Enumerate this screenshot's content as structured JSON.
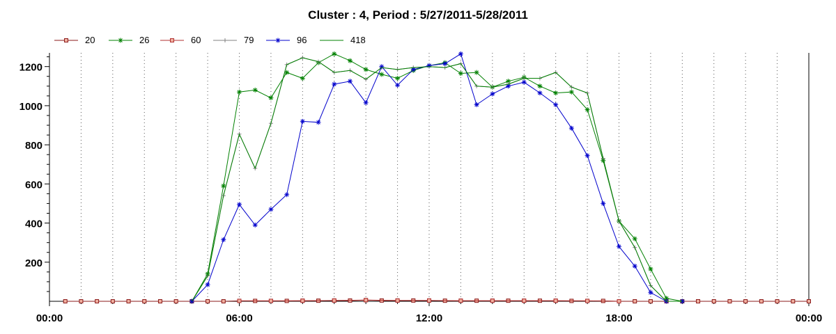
{
  "chart_data": {
    "type": "line",
    "title": "Cluster : 4, Period : 5/27/2011-5/28/2011",
    "xlabel": "",
    "ylabel": "",
    "xlim": [
      0,
      24
    ],
    "ylim": [
      0,
      1270
    ],
    "x_ticks": [
      {
        "value": 0,
        "label": "00:00"
      },
      {
        "value": 6,
        "label": "06:00"
      },
      {
        "value": 12,
        "label": "12:00"
      },
      {
        "value": 18,
        "label": "18:00"
      },
      {
        "value": 24,
        "label": "00:00"
      }
    ],
    "y_ticks": [
      200,
      400,
      600,
      800,
      1000,
      1200
    ],
    "grid": "vertical dotted every hour",
    "legend_position": "top-left",
    "series": [
      {
        "name": "20",
        "color": "#8b1a1a",
        "marker": "square",
        "x": [
          0.5,
          1,
          1.5,
          2,
          2.5,
          3,
          3.5,
          4,
          4.5,
          5,
          5.5,
          6,
          6.5,
          7,
          7.5,
          8,
          8.5,
          9,
          9.5,
          10,
          10.5,
          11,
          11.5,
          12,
          12.5,
          13,
          13.5,
          14,
          14.5,
          15,
          15.5,
          16,
          16.5,
          17,
          17.5,
          18,
          18.5,
          19,
          19.5,
          20,
          20.5,
          21,
          21.5,
          22,
          22.5,
          23,
          23.5,
          24
        ],
        "y": [
          0,
          0,
          0,
          0,
          0,
          0,
          0,
          0,
          0,
          0,
          0,
          2,
          2,
          2,
          2,
          3,
          3,
          4,
          4,
          6,
          4,
          4,
          4,
          4,
          3,
          3,
          3,
          3,
          3,
          3,
          3,
          3,
          2,
          2,
          2,
          0,
          0,
          0,
          0,
          0,
          0,
          0,
          0,
          0,
          0,
          0,
          0,
          0
        ]
      },
      {
        "name": "26",
        "color": "#008000",
        "marker": "star",
        "x": [
          4.5,
          5,
          5.5,
          6,
          6.5,
          7,
          7.5,
          8,
          8.5,
          9,
          9.5,
          10,
          10.5,
          11,
          11.5,
          12,
          12.5,
          13,
          13.5,
          14,
          14.5,
          15,
          15.5,
          16,
          16.5,
          17,
          17.5,
          18,
          18.5,
          19,
          19.5,
          20
        ],
        "y": [
          0,
          140,
          590,
          1070,
          1080,
          1040,
          1170,
          1140,
          1220,
          1265,
          1230,
          1185,
          1160,
          1140,
          1180,
          1205,
          1220,
          1165,
          1170,
          1095,
          1125,
          1145,
          1100,
          1065,
          1070,
          980,
          720,
          410,
          320,
          165,
          15,
          0
        ]
      },
      {
        "name": "60",
        "color": "#b03030",
        "marker": "square",
        "x": [
          6,
          7,
          8,
          9,
          10,
          11,
          12,
          13,
          14,
          15,
          16,
          17,
          18
        ],
        "y": [
          2,
          2,
          3,
          4,
          6,
          4,
          4,
          3,
          3,
          3,
          3,
          2,
          0
        ]
      },
      {
        "name": "79",
        "color": "#808080",
        "marker": "plus",
        "x": [
          4.5,
          5,
          5.5,
          6,
          6.5,
          7,
          7.5,
          8,
          8.5,
          9,
          9.5,
          10,
          10.5,
          11,
          11.5,
          12,
          12.5,
          13,
          13.5,
          14,
          14.5,
          15,
          15.5,
          16,
          16.5,
          17,
          17.5,
          18,
          18.5,
          19,
          19.5,
          20
        ],
        "y": [
          0,
          130,
          540,
          855,
          680,
          910,
          1210,
          1245,
          1225,
          1170,
          1180,
          1135,
          1195,
          1185,
          1195,
          1200,
          1195,
          1215,
          1100,
          1095,
          1110,
          1140,
          1140,
          1170,
          1095,
          1065,
          730,
          410,
          275,
          80,
          0,
          0
        ]
      },
      {
        "name": "96",
        "color": "#0000cc",
        "marker": "star",
        "x": [
          4.5,
          5,
          5.5,
          6,
          6.5,
          7,
          7.5,
          8,
          8.5,
          9,
          9.5,
          10,
          10.5,
          11,
          11.5,
          12,
          12.5,
          13,
          13.5,
          14,
          14.5,
          15,
          15.5,
          16,
          16.5,
          17,
          17.5,
          18,
          18.5,
          19,
          19.5,
          20
        ],
        "y": [
          0,
          85,
          315,
          495,
          390,
          470,
          545,
          920,
          915,
          1110,
          1125,
          1015,
          1200,
          1105,
          1185,
          1205,
          1215,
          1265,
          1005,
          1060,
          1100,
          1120,
          1065,
          1005,
          885,
          745,
          500,
          280,
          180,
          45,
          0,
          0
        ]
      },
      {
        "name": "418",
        "color": "#008000",
        "marker": "none",
        "x": [
          4.5,
          5,
          5.5,
          6,
          6.5,
          7,
          7.5,
          8,
          8.5,
          9,
          9.5,
          10,
          10.5,
          11,
          11.5,
          12,
          12.5,
          13,
          13.5,
          14,
          14.5,
          15,
          15.5,
          16,
          16.5,
          17,
          17.5,
          18,
          18.5,
          19,
          19.5,
          20
        ],
        "y": [
          0,
          130,
          540,
          855,
          680,
          910,
          1210,
          1245,
          1225,
          1170,
          1180,
          1135,
          1195,
          1185,
          1195,
          1200,
          1195,
          1215,
          1100,
          1095,
          1110,
          1140,
          1140,
          1170,
          1095,
          1065,
          730,
          410,
          275,
          80,
          0,
          0
        ]
      }
    ]
  }
}
